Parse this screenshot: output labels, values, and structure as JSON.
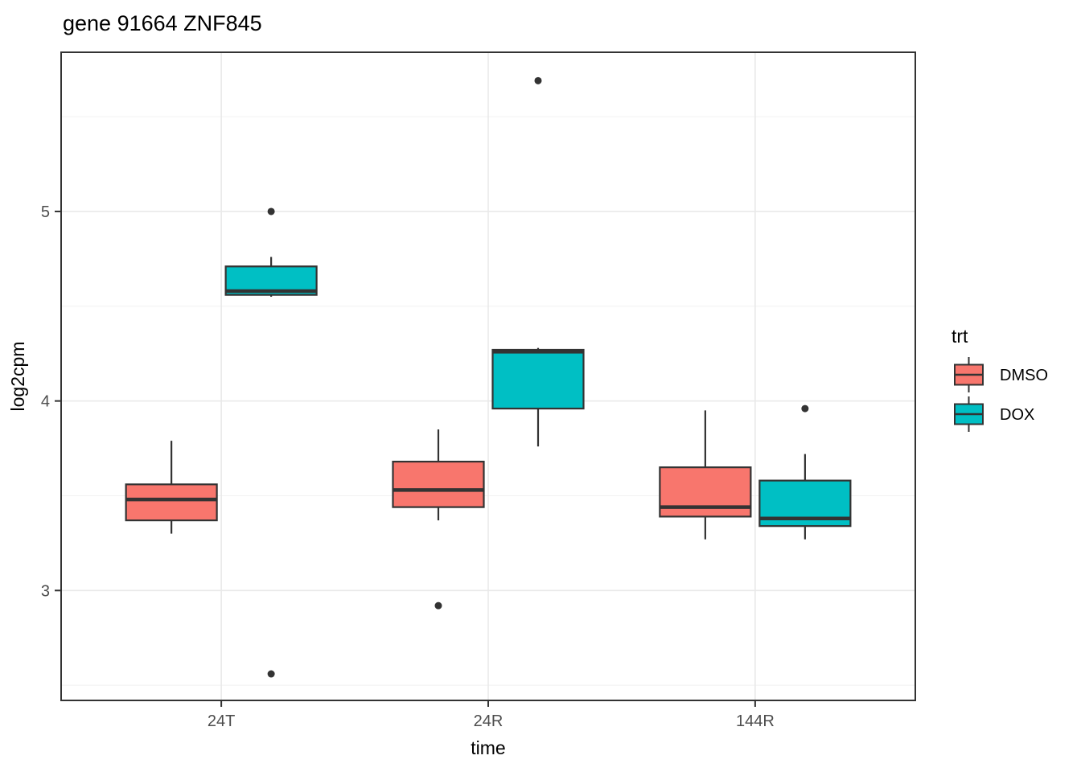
{
  "title": "gene 91664 ZNF845",
  "chart_data": {
    "type": "boxplot",
    "title": "gene 91664 ZNF845",
    "xlabel": "time",
    "ylabel": "log2cpm",
    "categories": [
      "24T",
      "24R",
      "144R"
    ],
    "yticks": [
      3,
      4,
      5
    ],
    "yminorticks": [
      2.5,
      3.5,
      4.5,
      5.5
    ],
    "ylim": [
      2.42,
      5.84
    ],
    "grid": true,
    "legend_position": "right",
    "legend_title": "trt",
    "series": [
      {
        "name": "DMSO",
        "color": "#F8766D",
        "boxes": [
          {
            "category": "24T",
            "whisker_low": 3.3,
            "q1": 3.37,
            "median": 3.48,
            "q3": 3.56,
            "whisker_high": 3.79,
            "outliers": []
          },
          {
            "category": "24R",
            "whisker_low": 3.37,
            "q1": 3.44,
            "median": 3.53,
            "q3": 3.68,
            "whisker_high": 3.85,
            "outliers": [
              2.92
            ]
          },
          {
            "category": "144R",
            "whisker_low": 3.27,
            "q1": 3.39,
            "median": 3.44,
            "q3": 3.65,
            "whisker_high": 3.95,
            "outliers": []
          }
        ]
      },
      {
        "name": "DOX",
        "color": "#00BFC4",
        "boxes": [
          {
            "category": "24T",
            "whisker_low": 4.55,
            "q1": 4.56,
            "median": 4.58,
            "q3": 4.71,
            "whisker_high": 4.76,
            "outliers": [
              5.0,
              2.56
            ]
          },
          {
            "category": "24R",
            "whisker_low": 3.76,
            "q1": 3.96,
            "median": 4.26,
            "q3": 4.27,
            "whisker_high": 4.28,
            "outliers": [
              5.69
            ]
          },
          {
            "category": "144R",
            "whisker_low": 3.27,
            "q1": 3.34,
            "median": 3.38,
            "q3": 3.58,
            "whisker_high": 3.72,
            "outliers": [
              3.96
            ]
          }
        ]
      }
    ]
  },
  "style": {
    "outline_color": "#333333",
    "panel_border_color": "#333333",
    "grid_major_color": "#E9E9E9",
    "grid_minor_color": "#F3F3F3",
    "tick_label_color": "#4D4D4D",
    "text_color": "#000000",
    "background": "#FFFFFF"
  }
}
